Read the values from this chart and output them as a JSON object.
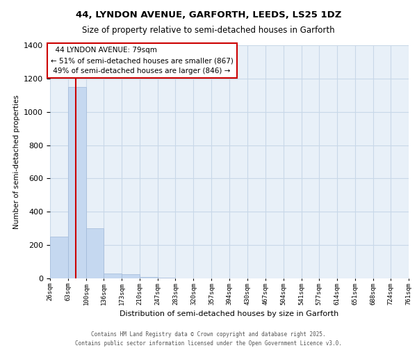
{
  "title_line1": "44, LYNDON AVENUE, GARFORTH, LEEDS, LS25 1DZ",
  "title_line2": "Size of property relative to semi-detached houses in Garforth",
  "xlabel": "Distribution of semi-detached houses by size in Garforth",
  "ylabel": "Number of semi-detached properties",
  "footer_line1": "Contains HM Land Registry data © Crown copyright and database right 2025.",
  "footer_line2": "Contains public sector information licensed under the Open Government Licence v3.0.",
  "property_size": 79,
  "property_label": "44 LYNDON AVENUE: 79sqm",
  "pct_smaller": 51,
  "count_smaller": 867,
  "pct_larger": 49,
  "count_larger": 846,
  "bar_color": "#c5d8f0",
  "bar_edge_color": "#a0b8d8",
  "redline_color": "#cc0000",
  "annotation_box_color": "#cc0000",
  "grid_color": "#c8d8e8",
  "background_color": "#e8f0f8",
  "ylim": [
    0,
    1400
  ],
  "yticks": [
    0,
    200,
    400,
    600,
    800,
    1000,
    1200,
    1400
  ],
  "bin_edges": [
    26,
    63,
    100,
    136,
    173,
    210,
    247,
    283,
    320,
    357,
    394,
    430,
    467,
    504,
    541,
    577,
    614,
    651,
    688,
    724,
    761
  ],
  "bin_heights": [
    250,
    1150,
    300,
    30,
    25,
    10,
    5,
    1,
    0,
    0,
    0,
    0,
    0,
    0,
    0,
    0,
    0,
    0,
    0,
    0
  ]
}
